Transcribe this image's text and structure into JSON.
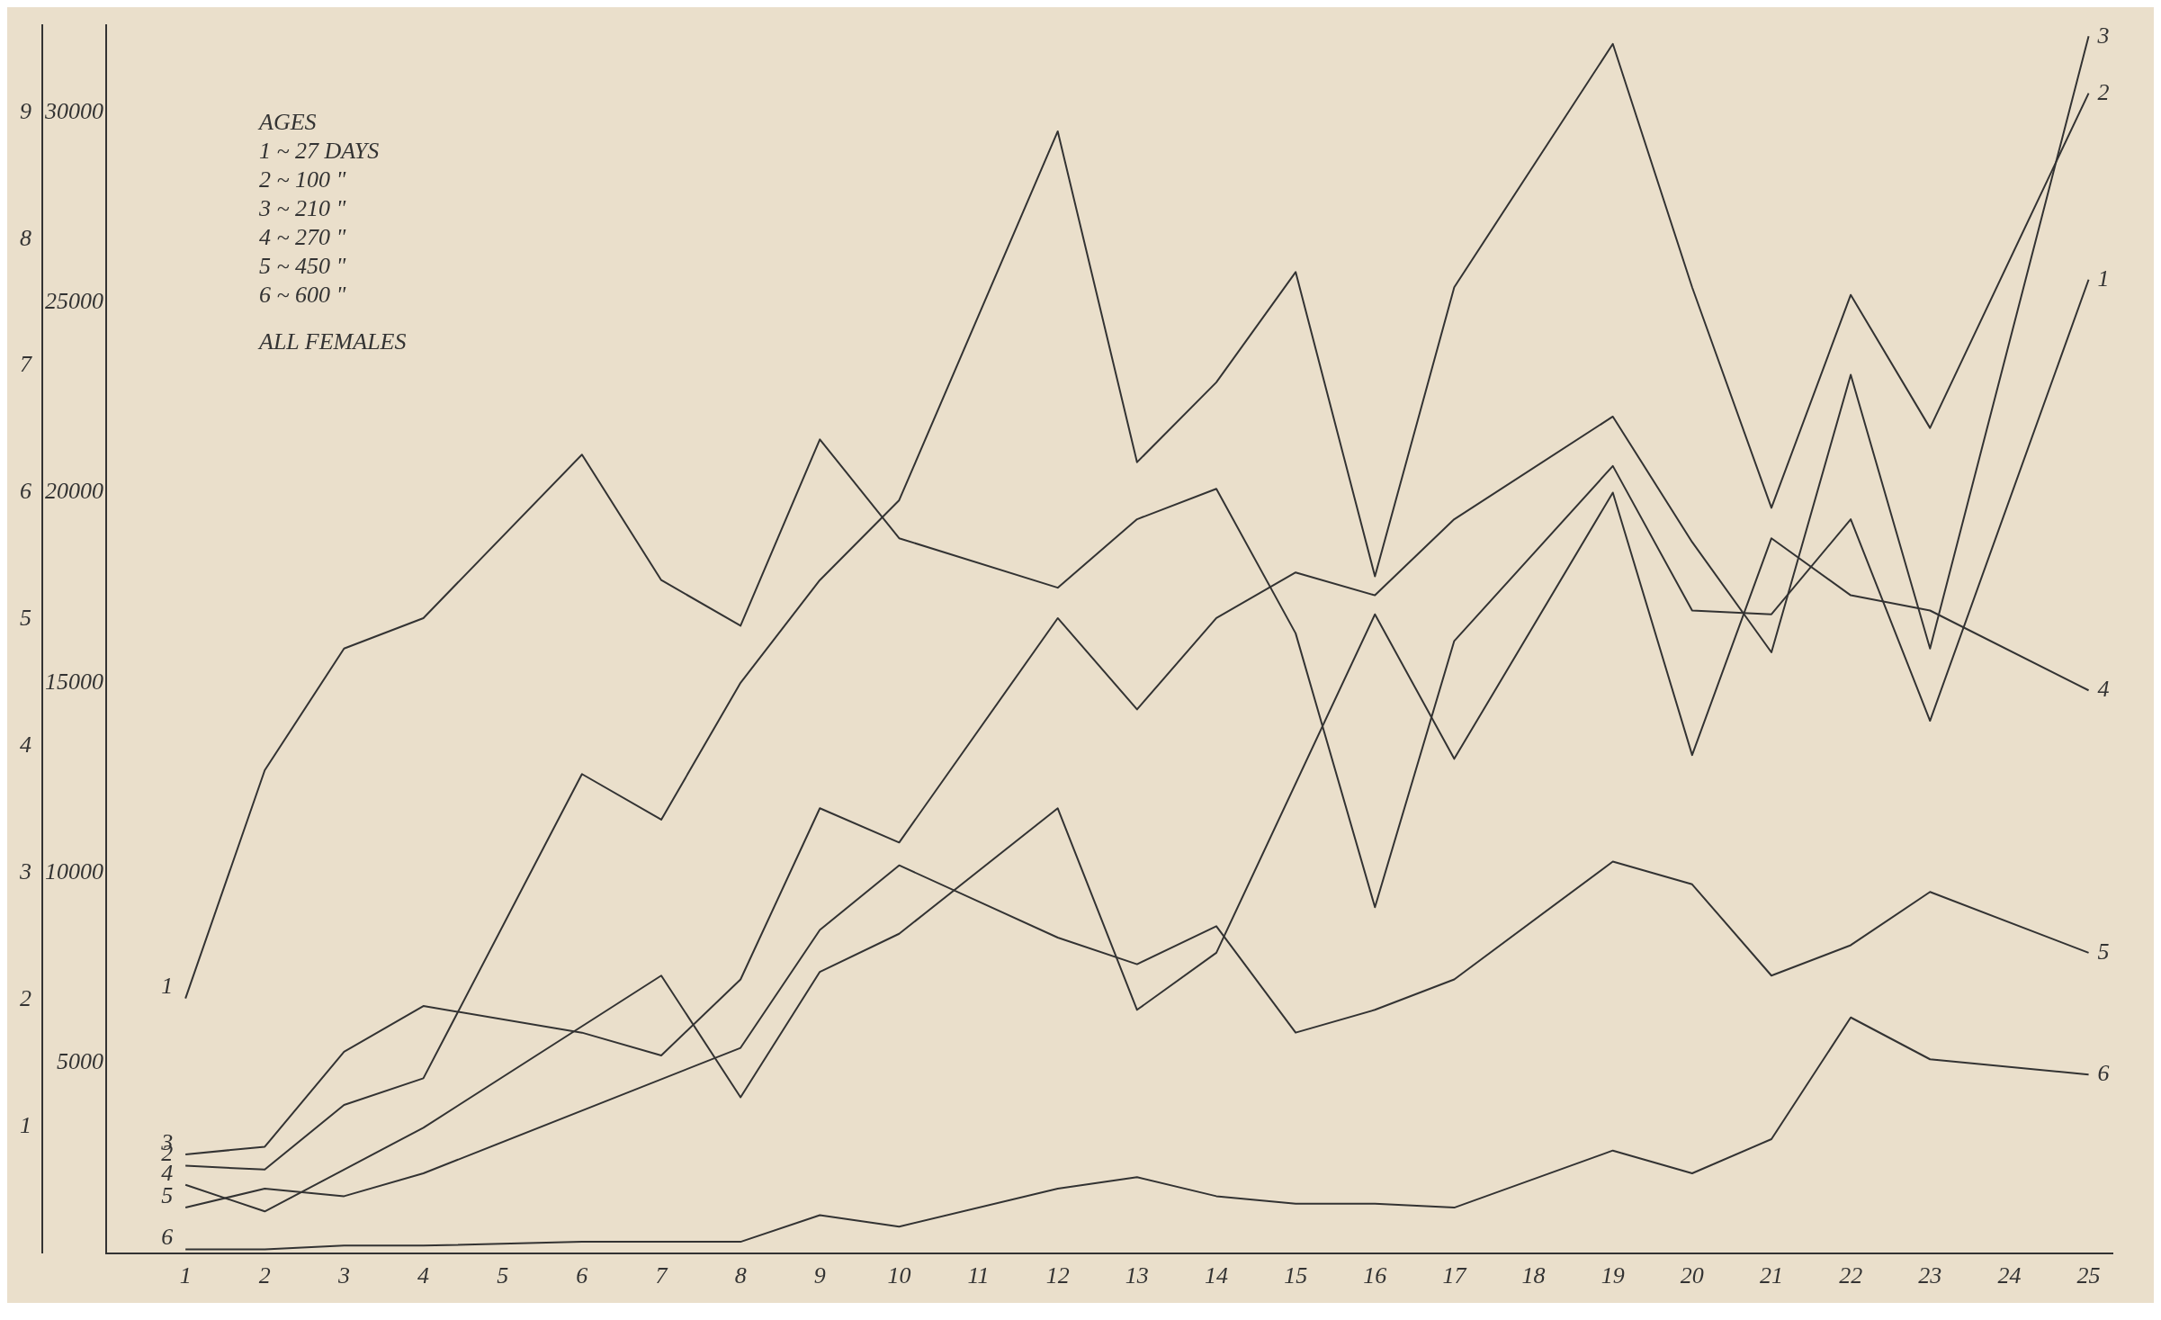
{
  "chart_data": {
    "type": "line",
    "x": [
      1,
      2,
      3,
      4,
      5,
      6,
      7,
      8,
      9,
      10,
      11,
      12,
      13,
      14,
      15,
      16,
      17,
      18,
      19,
      20,
      21,
      22,
      23,
      24,
      25
    ],
    "series": [
      {
        "name": "1",
        "color": "#333333",
        "values": [
          6700,
          12700,
          15900,
          16700,
          null,
          21000,
          17700,
          16500,
          21400,
          18800,
          null,
          17500,
          19300,
          20100,
          16300,
          9100,
          16100,
          null,
          20700,
          16900,
          16800,
          19300,
          14000,
          null,
          25600
        ]
      },
      {
        "name": "2",
        "color": "#333333",
        "values": [
          2300,
          2200,
          3900,
          4600,
          null,
          12600,
          11400,
          15000,
          17700,
          19800,
          null,
          29500,
          20800,
          22900,
          25800,
          17800,
          25400,
          null,
          31800,
          25400,
          19600,
          25200,
          21700,
          null,
          30500
        ]
      },
      {
        "name": "3",
        "color": "#333333",
        "values": [
          2600,
          2800,
          5300,
          6500,
          null,
          5800,
          5200,
          7200,
          11700,
          10800,
          null,
          16700,
          14300,
          16700,
          17900,
          17300,
          19300,
          null,
          22000,
          18700,
          15800,
          23100,
          15900,
          null,
          32000
        ]
      },
      {
        "name": "4",
        "color": "#333333",
        "values": [
          1800,
          1100,
          2200,
          3300,
          null,
          null,
          7300,
          4100,
          7400,
          8400,
          null,
          11700,
          6400,
          7900,
          null,
          16800,
          13000,
          null,
          20000,
          13100,
          18800,
          17300,
          16900,
          null,
          14800
        ]
      },
      {
        "name": "5",
        "color": "#333333",
        "values": [
          1200,
          1700,
          1500,
          2100,
          null,
          null,
          null,
          5400,
          8500,
          10200,
          null,
          8300,
          7600,
          8600,
          5800,
          6400,
          7200,
          null,
          10300,
          9700,
          7300,
          8100,
          9500,
          null,
          7900
        ]
      },
      {
        "name": "6",
        "color": "#333333",
        "values": [
          100,
          100,
          200,
          200,
          null,
          300,
          300,
          300,
          1000,
          700,
          null,
          1700,
          2000,
          1500,
          1300,
          1300,
          1200,
          null,
          2700,
          2100,
          3000,
          6200,
          5100,
          null,
          4700
        ]
      }
    ],
    "xlim": [
      0,
      25.3
    ],
    "xticks": [
      1,
      2,
      3,
      4,
      5,
      6,
      7,
      8,
      9,
      10,
      11,
      12,
      13,
      14,
      15,
      16,
      17,
      18,
      19,
      20,
      21,
      22,
      23,
      24,
      25
    ],
    "ylim": [
      0,
      32300
    ],
    "yticks": [
      5000,
      10000,
      15000,
      20000,
      25000,
      30000
    ],
    "y2lim": [
      0,
      9.69
    ],
    "y2ticks": [
      1,
      2,
      3,
      4,
      5,
      6,
      7,
      8,
      9
    ],
    "annotations": [
      "AGES",
      "1 ~ 27 DAYS",
      "2 ~ 100 \"",
      "3 ~ 210 \"",
      "4 ~ 270 \"",
      "5 ~ 450 \"",
      "6 ~ 600 \"",
      "ALL FEMALES"
    ],
    "grid": false,
    "legend": false,
    "marker": "none",
    "line_style": "solid"
  }
}
